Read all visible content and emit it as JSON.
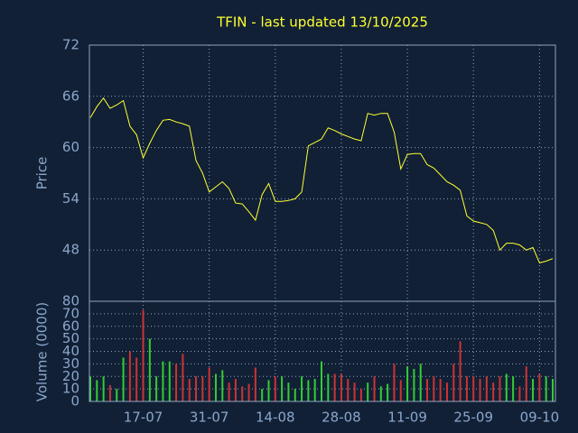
{
  "chart_data": [
    {
      "type": "line",
      "title": "TFIN - last updated 13/10/2025",
      "ylabel": "Price",
      "color": "#ffff33",
      "values": [
        63.5,
        64.8,
        65.8,
        64.6,
        65.0,
        65.5,
        62.5,
        61.5,
        58.8,
        60.5,
        62.0,
        63.2,
        63.3,
        63.0,
        62.8,
        62.5,
        58.5,
        57.0,
        54.8,
        55.4,
        56.0,
        55.2,
        53.5,
        53.4,
        52.5,
        51.5,
        54.5,
        55.8,
        53.7,
        53.7,
        53.8,
        54.0,
        54.8,
        60.2,
        60.6,
        61.0,
        62.3,
        62.0,
        61.6,
        61.3,
        61.0,
        60.8,
        64.0,
        63.8,
        64.0,
        64.0,
        61.8,
        57.5,
        59.2,
        59.3,
        59.3,
        58.0,
        57.6,
        56.8,
        56.0,
        55.6,
        55.0,
        52.0,
        51.4,
        51.2,
        51.0,
        50.3,
        48.0,
        48.8,
        48.8,
        48.6,
        48.0,
        48.3,
        46.5,
        46.7,
        47.0
      ],
      "ylim": [
        42,
        72
      ],
      "yticks": [
        48,
        54,
        60,
        66,
        72
      ],
      "grid": true
    },
    {
      "type": "bar",
      "ylabel": "Volume (0000)",
      "up_color": "#33cc33",
      "down_color": "#cc3333",
      "categories": [
        null,
        null,
        null,
        null,
        null,
        null,
        null,
        null,
        "17-07",
        null,
        null,
        null,
        null,
        null,
        null,
        null,
        null,
        null,
        "31-07",
        null,
        null,
        null,
        null,
        null,
        null,
        null,
        null,
        null,
        "14-08",
        null,
        null,
        null,
        null,
        null,
        null,
        null,
        null,
        null,
        "28-08",
        null,
        null,
        null,
        null,
        null,
        null,
        null,
        null,
        null,
        "11-09",
        null,
        null,
        null,
        null,
        null,
        null,
        null,
        null,
        null,
        "25-09",
        null,
        null,
        null,
        null,
        null,
        null,
        null,
        null,
        null,
        "09-10",
        null,
        null
      ],
      "values": [
        20,
        17,
        20,
        13,
        10,
        35,
        40,
        35,
        73,
        50,
        20,
        32,
        32,
        30,
        38,
        18,
        20,
        20,
        27,
        22,
        25,
        15,
        18,
        12,
        14,
        27,
        10,
        17,
        20,
        20,
        15,
        10,
        20,
        17,
        18,
        32,
        22,
        22,
        22,
        18,
        15,
        10,
        15,
        20,
        12,
        14,
        30,
        17,
        28,
        26,
        30,
        18,
        20,
        18,
        15,
        30,
        48,
        20,
        20,
        18,
        20,
        15,
        20,
        22,
        20,
        12,
        28,
        18,
        22,
        20,
        18
      ],
      "ylim": [
        0,
        80
      ],
      "yticks": [
        0,
        10,
        20,
        30,
        40,
        50,
        60,
        70,
        80
      ],
      "grid": true
    }
  ]
}
